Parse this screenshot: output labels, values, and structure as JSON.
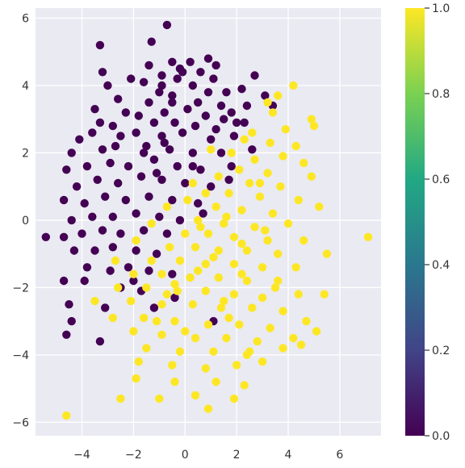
{
  "chart_data": {
    "type": "scatter",
    "title": "",
    "xlabel": "",
    "ylabel": "",
    "xlim": [
      -5.8,
      7.6
    ],
    "ylim": [
      -6.4,
      6.3
    ],
    "xticks": [
      -4,
      -2,
      0,
      2,
      4,
      6
    ],
    "yticks": [
      -6,
      -4,
      -2,
      0,
      2,
      4,
      6
    ],
    "xtick_labels": [
      "−4",
      "−2",
      "0",
      "2",
      "4",
      "6"
    ],
    "ytick_labels": [
      "−6",
      "−4",
      "−2",
      "0",
      "2",
      "4",
      "6"
    ],
    "grid": true,
    "colormap": "viridis",
    "background": "#eaeaf2",
    "colorbar": {
      "range": [
        0.0,
        1.0
      ],
      "ticks": [
        0.0,
        0.2,
        0.4,
        0.6,
        0.8,
        1.0
      ],
      "tick_labels": [
        "0.0",
        "0.2",
        "0.4",
        "0.6",
        "0.8",
        "1.0"
      ],
      "stops": [
        "#440154",
        "#414487",
        "#2a788e",
        "#22a884",
        "#7ad151",
        "#fde725"
      ]
    },
    "series": [
      {
        "class": 0,
        "color": "#440154",
        "points": [
          [
            -0.7,
            5.8
          ],
          [
            -3.3,
            5.2
          ],
          [
            -1.3,
            5.3
          ],
          [
            -1.4,
            4.6
          ],
          [
            -0.5,
            4.7
          ],
          [
            0.2,
            4.7
          ],
          [
            0.9,
            4.8
          ],
          [
            1.2,
            4.6
          ],
          [
            -0.2,
            4.5
          ],
          [
            0.6,
            4.4
          ],
          [
            -3.2,
            4.4
          ],
          [
            -2.1,
            4.2
          ],
          [
            -1.6,
            4.1
          ],
          [
            -0.9,
            4.3
          ],
          [
            -0.3,
            4.2
          ],
          [
            1.1,
            4.2
          ],
          [
            2.7,
            4.3
          ],
          [
            -3.0,
            4.0
          ],
          [
            -1.0,
            3.8
          ],
          [
            0.3,
            4.0
          ],
          [
            0.9,
            3.8
          ],
          [
            1.6,
            3.8
          ],
          [
            2.2,
            3.9
          ],
          [
            3.1,
            3.7
          ],
          [
            -2.6,
            3.6
          ],
          [
            -1.4,
            3.5
          ],
          [
            -0.5,
            3.7
          ],
          [
            0.5,
            3.5
          ],
          [
            1.4,
            3.4
          ],
          [
            2.4,
            3.4
          ],
          [
            3.4,
            3.4
          ],
          [
            -3.5,
            3.3
          ],
          [
            -2.3,
            3.2
          ],
          [
            -1.8,
            3.1
          ],
          [
            -0.8,
            3.2
          ],
          [
            0.1,
            3.3
          ],
          [
            0.8,
            3.1
          ],
          [
            1.8,
            3.2
          ],
          [
            -3.3,
            2.9
          ],
          [
            -2.8,
            2.8
          ],
          [
            -1.2,
            2.9
          ],
          [
            -0.4,
            2.9
          ],
          [
            0.4,
            2.8
          ],
          [
            1.2,
            2.7
          ],
          [
            2.3,
            2.9
          ],
          [
            -4.1,
            2.4
          ],
          [
            -3.6,
            2.6
          ],
          [
            -2.5,
            2.5
          ],
          [
            -1.9,
            2.6
          ],
          [
            -0.9,
            2.5
          ],
          [
            -0.1,
            2.6
          ],
          [
            1.0,
            2.4
          ],
          [
            1.9,
            2.5
          ],
          [
            -4.4,
            2.0
          ],
          [
            -3.2,
            2.1
          ],
          [
            -2.7,
            2.2
          ],
          [
            -1.5,
            2.2
          ],
          [
            -0.6,
            2.1
          ],
          [
            0.3,
            2.0
          ],
          [
            1.4,
            2.0
          ],
          [
            2.6,
            2.1
          ],
          [
            -4.6,
            1.5
          ],
          [
            -3.8,
            1.6
          ],
          [
            -2.9,
            1.7
          ],
          [
            -2.2,
            1.6
          ],
          [
            -1.2,
            1.8
          ],
          [
            -0.3,
            1.6
          ],
          [
            0.6,
            1.5
          ],
          [
            1.8,
            1.6
          ],
          [
            -4.2,
            1.0
          ],
          [
            -3.4,
            1.2
          ],
          [
            -2.6,
            1.1
          ],
          [
            -1.7,
            1.3
          ],
          [
            -0.9,
            1.2
          ],
          [
            0.0,
            1.1
          ],
          [
            1.0,
            1.0
          ],
          [
            -4.7,
            0.6
          ],
          [
            -3.9,
            0.5
          ],
          [
            -3.1,
            0.7
          ],
          [
            -2.3,
            0.6
          ],
          [
            -1.4,
            0.7
          ],
          [
            -0.5,
            0.6
          ],
          [
            0.5,
            0.5
          ],
          [
            -4.4,
            0.0
          ],
          [
            -3.6,
            0.1
          ],
          [
            -2.8,
            0.1
          ],
          [
            -1.9,
            0.2
          ],
          [
            -1.0,
            0.1
          ],
          [
            -0.2,
            0.0
          ],
          [
            -5.4,
            -0.5
          ],
          [
            -4.7,
            -0.5
          ],
          [
            -4.0,
            -0.4
          ],
          [
            -3.2,
            -0.3
          ],
          [
            -2.5,
            -0.4
          ],
          [
            -1.6,
            -0.3
          ],
          [
            -0.7,
            -0.4
          ],
          [
            -4.3,
            -0.9
          ],
          [
            -3.5,
            -0.9
          ],
          [
            -2.8,
            -0.8
          ],
          [
            -1.9,
            -0.9
          ],
          [
            -1.1,
            -1.0
          ],
          [
            -3.8,
            -1.4
          ],
          [
            -2.9,
            -1.5
          ],
          [
            -2.2,
            -1.4
          ],
          [
            -1.4,
            -1.5
          ],
          [
            -0.5,
            -1.6
          ],
          [
            -4.7,
            -1.8
          ],
          [
            -3.9,
            -1.8
          ],
          [
            -2.5,
            -2.0
          ],
          [
            -1.7,
            -2.1
          ],
          [
            -0.4,
            -2.3
          ],
          [
            -4.5,
            -2.5
          ],
          [
            -3.1,
            -2.6
          ],
          [
            -1.2,
            -2.6
          ],
          [
            -4.4,
            -3.0
          ],
          [
            -3.3,
            -3.6
          ],
          [
            -4.6,
            -3.4
          ],
          [
            1.1,
            -3.0
          ],
          [
            -0.5,
            3.5
          ],
          [
            1.7,
            1.2
          ],
          [
            -0.9,
            4.0
          ],
          [
            0.3,
            1.6
          ],
          [
            -1.6,
            2.0
          ],
          [
            2.0,
            2.9
          ],
          [
            -2.0,
            -1.8
          ],
          [
            0.7,
            0.2
          ],
          [
            -0.1,
            4.4
          ],
          [
            1.5,
            3.0
          ],
          [
            -1.1,
            1.4
          ],
          [
            -0.8,
            2.3
          ]
        ]
      },
      {
        "class": 1,
        "color": "#fde725",
        "points": [
          [
            4.2,
            4.0
          ],
          [
            3.6,
            3.7
          ],
          [
            3.2,
            3.5
          ],
          [
            3.4,
            3.2
          ],
          [
            4.9,
            3.0
          ],
          [
            5.0,
            2.8
          ],
          [
            3.9,
            2.7
          ],
          [
            2.6,
            2.6
          ],
          [
            3.3,
            2.3
          ],
          [
            2.3,
            2.4
          ],
          [
            4.3,
            2.2
          ],
          [
            1.8,
            2.0
          ],
          [
            2.7,
            1.8
          ],
          [
            3.8,
            1.9
          ],
          [
            4.6,
            1.7
          ],
          [
            2.1,
            1.5
          ],
          [
            3.2,
            1.4
          ],
          [
            1.3,
            1.3
          ],
          [
            4.9,
            1.3
          ],
          [
            2.5,
            1.1
          ],
          [
            3.7,
            1.0
          ],
          [
            0.8,
            0.8
          ],
          [
            1.7,
            0.8
          ],
          [
            2.9,
            0.7
          ],
          [
            4.4,
            0.6
          ],
          [
            1.2,
            0.4
          ],
          [
            2.2,
            0.3
          ],
          [
            3.4,
            0.2
          ],
          [
            5.2,
            0.4
          ],
          [
            0.5,
            0.0
          ],
          [
            1.5,
            -0.1
          ],
          [
            2.7,
            -0.2
          ],
          [
            4.0,
            -0.1
          ],
          [
            0.0,
            -0.4
          ],
          [
            0.9,
            -0.4
          ],
          [
            1.9,
            -0.5
          ],
          [
            3.2,
            -0.6
          ],
          [
            4.6,
            -0.6
          ],
          [
            7.1,
            -0.5
          ],
          [
            -0.6,
            -0.8
          ],
          [
            0.4,
            -0.8
          ],
          [
            1.3,
            -0.9
          ],
          [
            2.4,
            -0.9
          ],
          [
            3.6,
            -1.0
          ],
          [
            5.5,
            -1.0
          ],
          [
            -1.3,
            -1.2
          ],
          [
            -0.2,
            -1.2
          ],
          [
            0.8,
            -1.3
          ],
          [
            1.9,
            -1.3
          ],
          [
            3.0,
            -1.4
          ],
          [
            4.3,
            -1.4
          ],
          [
            -2.0,
            -1.6
          ],
          [
            -0.9,
            -1.6
          ],
          [
            0.2,
            -1.7
          ],
          [
            1.3,
            -1.7
          ],
          [
            2.4,
            -1.8
          ],
          [
            3.6,
            -1.8
          ],
          [
            -2.6,
            -2.0
          ],
          [
            -1.5,
            -2.0
          ],
          [
            -0.3,
            -2.1
          ],
          [
            0.8,
            -2.1
          ],
          [
            1.9,
            -2.2
          ],
          [
            3.0,
            -2.3
          ],
          [
            4.4,
            -2.2
          ],
          [
            5.4,
            -2.2
          ],
          [
            -3.5,
            -2.4
          ],
          [
            -2.1,
            -2.4
          ],
          [
            -0.9,
            -2.5
          ],
          [
            0.3,
            -2.5
          ],
          [
            1.4,
            -2.6
          ],
          [
            2.6,
            -2.6
          ],
          [
            3.8,
            -2.7
          ],
          [
            -2.8,
            -2.9
          ],
          [
            -1.6,
            -2.9
          ],
          [
            -0.4,
            -3.0
          ],
          [
            0.9,
            -3.1
          ],
          [
            2.1,
            -3.1
          ],
          [
            3.3,
            -3.2
          ],
          [
            4.7,
            -3.0
          ],
          [
            -2.0,
            -3.3
          ],
          [
            -0.9,
            -3.4
          ],
          [
            0.4,
            -3.5
          ],
          [
            1.6,
            -3.5
          ],
          [
            2.8,
            -3.6
          ],
          [
            4.2,
            -3.5
          ],
          [
            5.1,
            -3.3
          ],
          [
            -1.5,
            -3.8
          ],
          [
            -0.2,
            -3.9
          ],
          [
            1.1,
            -3.9
          ],
          [
            2.4,
            -4.0
          ],
          [
            3.8,
            -3.8
          ],
          [
            4.5,
            -3.7
          ],
          [
            -1.8,
            -4.2
          ],
          [
            -0.5,
            -4.3
          ],
          [
            0.8,
            -4.4
          ],
          [
            2.0,
            -4.3
          ],
          [
            3.0,
            -4.2
          ],
          [
            -1.9,
            -4.7
          ],
          [
            -0.4,
            -4.8
          ],
          [
            1.2,
            -4.8
          ],
          [
            2.3,
            -4.9
          ],
          [
            -2.5,
            -5.3
          ],
          [
            -1.0,
            -5.3
          ],
          [
            0.4,
            -5.2
          ],
          [
            1.9,
            -5.3
          ],
          [
            0.9,
            -5.6
          ],
          [
            -4.6,
            -5.8
          ],
          [
            -2.7,
            -1.2
          ],
          [
            -1.9,
            -0.6
          ],
          [
            -0.7,
            0.4
          ],
          [
            0.3,
            1.1
          ],
          [
            1.0,
            2.1
          ],
          [
            1.6,
            0.1
          ],
          [
            2.2,
            -0.7
          ],
          [
            -1.3,
            -0.1
          ],
          [
            0.6,
            -0.2
          ],
          [
            1.1,
            -1.1
          ],
          [
            -0.4,
            -1.9
          ],
          [
            0.1,
            0.6
          ],
          [
            2.9,
            1.1
          ],
          [
            3.5,
            -2.0
          ],
          [
            1.7,
            -2.9
          ],
          [
            -1.1,
            -3.0
          ],
          [
            0.0,
            -3.3
          ],
          [
            2.5,
            -3.9
          ],
          [
            -0.7,
            -2.2
          ],
          [
            0.5,
            -1.5
          ],
          [
            1.5,
            -2.4
          ],
          [
            2.2,
            -1.6
          ],
          [
            3.1,
            -0.3
          ]
        ]
      }
    ]
  }
}
